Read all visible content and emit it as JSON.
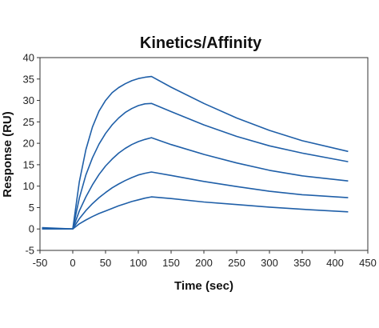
{
  "chart_data": {
    "type": "line",
    "title": "Kinetics/Affinity",
    "xlabel": "Time (sec)",
    "ylabel": "Response (RU)",
    "xlim": [
      -50,
      450
    ],
    "ylim": [
      -5,
      40
    ],
    "xticks": [
      -50,
      0,
      50,
      100,
      150,
      200,
      250,
      300,
      350,
      400,
      450
    ],
    "yticks": [
      -5,
      0,
      5,
      10,
      15,
      20,
      25,
      30,
      35,
      40
    ],
    "grid": false,
    "legend": "none",
    "line_color": "#1f5fa8",
    "series": [
      {
        "x": [
          -47,
          0,
          10,
          20,
          30,
          40,
          50,
          60,
          70,
          80,
          90,
          100,
          110,
          120,
          150,
          200,
          250,
          300,
          350,
          420
        ],
        "values": [
          0,
          0,
          11.0,
          18.5,
          23.8,
          27.5,
          30.0,
          31.8,
          33.0,
          33.9,
          34.6,
          35.1,
          35.4,
          35.6,
          33.1,
          29.3,
          25.9,
          23.0,
          20.6,
          18.1
        ]
      },
      {
        "x": [
          -47,
          0,
          10,
          20,
          30,
          40,
          50,
          60,
          70,
          80,
          90,
          100,
          110,
          120,
          150,
          200,
          250,
          300,
          350,
          420
        ],
        "values": [
          0,
          0,
          7.2,
          12.6,
          16.6,
          19.8,
          22.3,
          24.3,
          25.9,
          27.2,
          28.1,
          28.8,
          29.2,
          29.3,
          27.4,
          24.3,
          21.6,
          19.4,
          17.7,
          15.7
        ]
      },
      {
        "x": [
          -47,
          0,
          10,
          20,
          30,
          40,
          50,
          60,
          70,
          80,
          90,
          100,
          110,
          120,
          150,
          200,
          250,
          300,
          350,
          420
        ],
        "values": [
          0,
          0,
          4.2,
          7.5,
          10.3,
          12.7,
          14.7,
          16.3,
          17.7,
          18.8,
          19.7,
          20.4,
          20.9,
          21.3,
          19.7,
          17.4,
          15.4,
          13.7,
          12.4,
          11.2
        ]
      },
      {
        "x": [
          -47,
          0,
          10,
          20,
          30,
          40,
          50,
          60,
          70,
          80,
          90,
          100,
          110,
          120,
          150,
          200,
          250,
          300,
          350,
          420
        ],
        "values": [
          0,
          0,
          2.4,
          4.3,
          5.9,
          7.3,
          8.5,
          9.6,
          10.5,
          11.3,
          12.0,
          12.6,
          13.0,
          13.3,
          12.5,
          11.1,
          9.9,
          8.8,
          8.0,
          7.3
        ]
      },
      {
        "x": [
          -47,
          0,
          10,
          20,
          30,
          40,
          50,
          60,
          70,
          80,
          90,
          100,
          110,
          120,
          150,
          200,
          250,
          300,
          350,
          420
        ],
        "values": [
          0.3,
          0,
          1.2,
          2.1,
          2.9,
          3.6,
          4.2,
          4.8,
          5.4,
          5.9,
          6.4,
          6.8,
          7.2,
          7.5,
          7.1,
          6.3,
          5.7,
          5.1,
          4.6,
          4.0
        ]
      }
    ]
  }
}
